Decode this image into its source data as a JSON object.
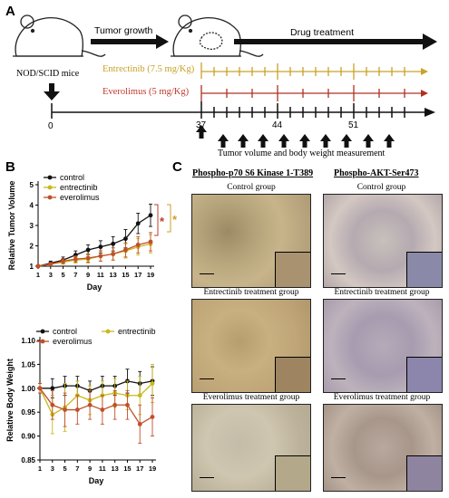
{
  "panels": {
    "a": "A",
    "b": "B",
    "c": "C"
  },
  "panel_a": {
    "tumor_growth": "Tumor growth",
    "drug_treatment": "Drug treatment",
    "mice": "NOD/SCID mice",
    "entrectinib": "Entrectinib (7.5 mg/Kg)",
    "everolimus": "Everolimus (5 mg/Kg)",
    "day0": "0",
    "day37": "37",
    "day44": "44",
    "day51": "51",
    "measurement": "Tumor volume and body weight measurement",
    "colors": {
      "entrectinib": "#c9a227",
      "everolimus": "#b03020",
      "text_entrectinib": "#c9a227",
      "text_everolimus": "#c0392b"
    }
  },
  "chart_data": [
    {
      "type": "line",
      "ylabel": "Relative  Tumor Volume",
      "xlabel": "Day",
      "x": [
        1,
        3,
        5,
        7,
        9,
        11,
        13,
        15,
        17,
        19
      ],
      "xticks": [
        "1",
        "3",
        "5",
        "7",
        "9",
        "11",
        "13",
        "15",
        "17",
        "19"
      ],
      "yticks": [
        "1",
        "2",
        "3",
        "4",
        "5"
      ],
      "ylim": [
        1,
        5
      ],
      "legend": "top-left",
      "series": [
        {
          "name": "control",
          "color": "#111111",
          "values": [
            1.0,
            1.15,
            1.3,
            1.55,
            1.8,
            1.95,
            2.1,
            2.35,
            3.1,
            3.5
          ],
          "err": [
            0.05,
            0.1,
            0.15,
            0.2,
            0.25,
            0.3,
            0.35,
            0.45,
            0.5,
            0.55
          ]
        },
        {
          "name": "entrectinib",
          "color": "#c9b81e",
          "values": [
            1.0,
            1.1,
            1.2,
            1.3,
            1.35,
            1.5,
            1.6,
            1.75,
            1.95,
            2.1
          ],
          "err": [
            0.05,
            0.08,
            0.1,
            0.15,
            0.2,
            0.25,
            0.3,
            0.35,
            0.4,
            0.45
          ]
        },
        {
          "name": "everolimus",
          "color": "#c0502a",
          "values": [
            1.0,
            1.1,
            1.25,
            1.35,
            1.4,
            1.5,
            1.6,
            1.8,
            2.05,
            2.2
          ],
          "err": [
            0.05,
            0.08,
            0.12,
            0.15,
            0.2,
            0.25,
            0.3,
            0.35,
            0.4,
            0.45
          ]
        }
      ],
      "significance": [
        {
          "symbol": "*",
          "color": "#c0392b"
        },
        {
          "symbol": "*",
          "color": "#c9a227"
        }
      ]
    },
    {
      "type": "line",
      "ylabel": "Relative Body Weight",
      "xlabel": "Day",
      "x": [
        1,
        3,
        5,
        7,
        9,
        11,
        13,
        15,
        17,
        19
      ],
      "xticks": [
        "1",
        "3",
        "5",
        "7",
        "9",
        "11",
        "13",
        "15",
        "17",
        "19"
      ],
      "yticks": [
        "0.85",
        "0.90",
        "0.95",
        "1.00",
        "1.05",
        "1.10"
      ],
      "ylim": [
        0.85,
        1.1
      ],
      "legend": "top",
      "series": [
        {
          "name": "control",
          "color": "#111111",
          "values": [
            1.0,
            1.0,
            1.005,
            1.005,
            0.995,
            1.005,
            1.005,
            1.015,
            1.01,
            1.015
          ],
          "err": [
            0.01,
            0.02,
            0.02,
            0.02,
            0.02,
            0.02,
            0.02,
            0.025,
            0.025,
            0.03
          ]
        },
        {
          "name": "entrectinib",
          "color": "#c9b81e",
          "values": [
            1.0,
            0.945,
            0.96,
            0.985,
            0.975,
            0.985,
            0.99,
            0.985,
            0.985,
            1.01
          ],
          "err": [
            0.01,
            0.04,
            0.05,
            0.03,
            0.03,
            0.03,
            0.03,
            0.03,
            0.04,
            0.04
          ]
        },
        {
          "name": "everolimus",
          "color": "#c0502a",
          "values": [
            1.0,
            0.965,
            0.955,
            0.955,
            0.965,
            0.955,
            0.965,
            0.965,
            0.925,
            0.94
          ],
          "err": [
            0.01,
            0.03,
            0.035,
            0.03,
            0.03,
            0.03,
            0.03,
            0.03,
            0.04,
            0.04
          ]
        }
      ]
    }
  ],
  "panel_c": {
    "col1": "Phospho-p70 S6 Kinase 1-T389",
    "col2": "Phospho-AKT-Ser473",
    "rows": [
      "Control group",
      "Entrectinib treatment group",
      "Everolimus treatment group"
    ]
  }
}
